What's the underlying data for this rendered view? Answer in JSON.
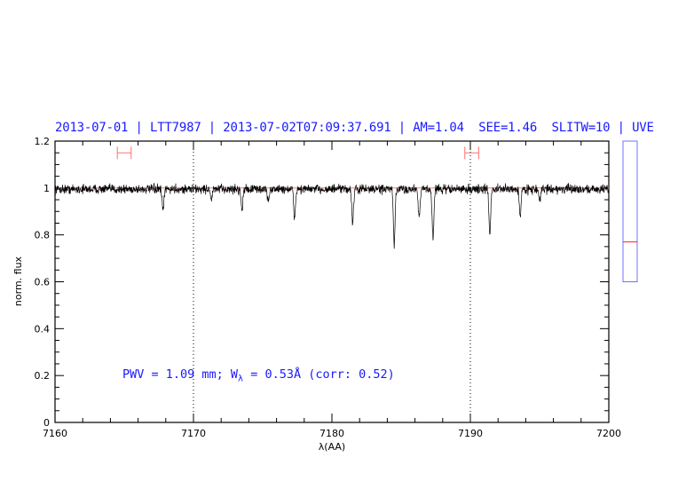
{
  "header": {
    "title": "2013-07-01 | LTT7987 | 2013-07-02T07:09:37.691 | AM=1.04  SEE=1.46  SLITW=10 | UVE"
  },
  "annotation": {
    "pwv_prefix": "PWV = 1.09 mm; W",
    "w_sub": "λ",
    "w_suffix": " = 0.53Å (corr: 0.52)"
  },
  "chart_data": {
    "type": "line",
    "xlabel": "λ(AA)",
    "ylabel": "norm. flux",
    "xlim": [
      7160,
      7200
    ],
    "ylim": [
      0,
      1.2
    ],
    "xticks": [
      "7160",
      "7170",
      "7180",
      "7190",
      "7200"
    ],
    "yticks": [
      "0",
      "0.2",
      "0.4",
      "0.6",
      "0.8",
      "1",
      "1.2"
    ],
    "reference_line": 1.0,
    "vertical_dotted_lines": [
      7170,
      7190
    ],
    "continuum_ranges": [
      [
        7164.5,
        7165.5
      ],
      [
        7189.6,
        7190.6
      ]
    ],
    "continuum_range_level": 1.15,
    "spectrum": {
      "continuum": 0.995,
      "noise": 0.012,
      "absorption_lines": [
        {
          "center": 7167.8,
          "min_flux": 0.9
        },
        {
          "center": 7171.3,
          "min_flux": 0.95
        },
        {
          "center": 7173.5,
          "min_flux": 0.91
        },
        {
          "center": 7175.4,
          "min_flux": 0.94
        },
        {
          "center": 7177.3,
          "min_flux": 0.87
        },
        {
          "center": 7181.5,
          "min_flux": 0.85
        },
        {
          "center": 7184.5,
          "min_flux": 0.76
        },
        {
          "center": 7186.3,
          "min_flux": 0.88
        },
        {
          "center": 7187.3,
          "min_flux": 0.79
        },
        {
          "center": 7191.4,
          "min_flux": 0.81
        },
        {
          "center": 7193.6,
          "min_flux": 0.88
        },
        {
          "center": 7195.0,
          "min_flux": 0.94
        }
      ]
    },
    "side_indicator": {
      "range": [
        0.6,
        1.2
      ],
      "marker": 0.77
    },
    "colors": {
      "spectrum": "#000000",
      "reference": "#ff6060",
      "range_bars": "#ff7070",
      "indicator_box": "#7070ff",
      "indicator_marker": "#ff2020",
      "text": "#1a1aff"
    }
  }
}
